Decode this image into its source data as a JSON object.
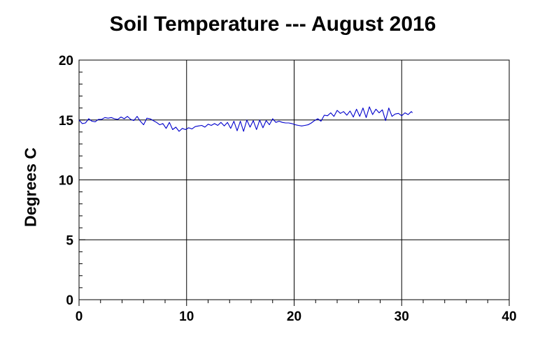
{
  "chart_data": {
    "type": "line",
    "title": "Soil Temperature --- August 2016",
    "xlabel": "",
    "ylabel": "Degrees C",
    "xlim": [
      0,
      40
    ],
    "ylim": [
      0,
      20
    ],
    "x_ticks": [
      0,
      10,
      20,
      30,
      40
    ],
    "y_ticks": [
      0,
      5,
      10,
      15,
      20
    ],
    "grid": true,
    "series": [
      {
        "color": "#0000cc",
        "points": [
          [
            0.0,
            15.0
          ],
          [
            0.3,
            14.7
          ],
          [
            0.6,
            14.75
          ],
          [
            0.9,
            15.1
          ],
          [
            1.2,
            14.9
          ],
          [
            1.5,
            14.85
          ],
          [
            1.8,
            15.05
          ],
          [
            2.1,
            15.05
          ],
          [
            2.4,
            15.2
          ],
          [
            2.7,
            15.15
          ],
          [
            3.0,
            15.2
          ],
          [
            3.3,
            15.1
          ],
          [
            3.6,
            15.05
          ],
          [
            3.9,
            15.25
          ],
          [
            4.2,
            15.1
          ],
          [
            4.5,
            15.3
          ],
          [
            4.8,
            15.05
          ],
          [
            5.1,
            14.95
          ],
          [
            5.4,
            15.3
          ],
          [
            5.7,
            14.9
          ],
          [
            6.0,
            14.6
          ],
          [
            6.3,
            15.15
          ],
          [
            6.6,
            15.1
          ],
          [
            6.9,
            14.95
          ],
          [
            7.2,
            14.8
          ],
          [
            7.5,
            14.6
          ],
          [
            7.8,
            14.7
          ],
          [
            8.1,
            14.3
          ],
          [
            8.4,
            14.8
          ],
          [
            8.7,
            14.2
          ],
          [
            9.0,
            14.4
          ],
          [
            9.3,
            14.05
          ],
          [
            9.6,
            14.3
          ],
          [
            9.9,
            14.2
          ],
          [
            10.2,
            14.35
          ],
          [
            10.5,
            14.25
          ],
          [
            10.8,
            14.45
          ],
          [
            11.1,
            14.5
          ],
          [
            11.4,
            14.55
          ],
          [
            11.7,
            14.4
          ],
          [
            12.0,
            14.65
          ],
          [
            12.3,
            14.55
          ],
          [
            12.6,
            14.7
          ],
          [
            12.9,
            14.55
          ],
          [
            13.2,
            14.8
          ],
          [
            13.5,
            14.5
          ],
          [
            13.8,
            14.8
          ],
          [
            14.1,
            14.3
          ],
          [
            14.4,
            14.9
          ],
          [
            14.7,
            14.1
          ],
          [
            15.0,
            14.9
          ],
          [
            15.3,
            14.05
          ],
          [
            15.6,
            15.0
          ],
          [
            15.9,
            14.4
          ],
          [
            16.2,
            14.95
          ],
          [
            16.5,
            14.2
          ],
          [
            16.8,
            15.0
          ],
          [
            17.1,
            14.35
          ],
          [
            17.4,
            14.95
          ],
          [
            17.7,
            14.6
          ],
          [
            18.0,
            15.1
          ],
          [
            18.3,
            14.8
          ],
          [
            18.6,
            14.9
          ],
          [
            18.9,
            14.8
          ],
          [
            19.2,
            14.75
          ],
          [
            19.5,
            14.75
          ],
          [
            19.8,
            14.7
          ],
          [
            20.1,
            14.6
          ],
          [
            20.4,
            14.55
          ],
          [
            20.7,
            14.5
          ],
          [
            21.0,
            14.55
          ],
          [
            21.3,
            14.6
          ],
          [
            21.6,
            14.75
          ],
          [
            21.9,
            14.95
          ],
          [
            22.2,
            15.1
          ],
          [
            22.5,
            14.9
          ],
          [
            22.8,
            15.4
          ],
          [
            23.1,
            15.35
          ],
          [
            23.4,
            15.6
          ],
          [
            23.7,
            15.3
          ],
          [
            24.0,
            15.8
          ],
          [
            24.3,
            15.55
          ],
          [
            24.6,
            15.7
          ],
          [
            24.9,
            15.4
          ],
          [
            25.2,
            15.75
          ],
          [
            25.5,
            15.25
          ],
          [
            25.8,
            15.9
          ],
          [
            26.1,
            15.3
          ],
          [
            26.4,
            16.0
          ],
          [
            26.7,
            15.2
          ],
          [
            27.0,
            16.1
          ],
          [
            27.3,
            15.45
          ],
          [
            27.6,
            15.9
          ],
          [
            27.9,
            15.6
          ],
          [
            28.2,
            15.85
          ],
          [
            28.5,
            14.95
          ],
          [
            28.8,
            16.0
          ],
          [
            29.1,
            15.3
          ],
          [
            29.4,
            15.5
          ],
          [
            29.7,
            15.55
          ],
          [
            30.0,
            15.35
          ],
          [
            30.3,
            15.6
          ],
          [
            30.6,
            15.45
          ],
          [
            30.9,
            15.7
          ],
          [
            31.0,
            15.6
          ]
        ]
      }
    ]
  }
}
